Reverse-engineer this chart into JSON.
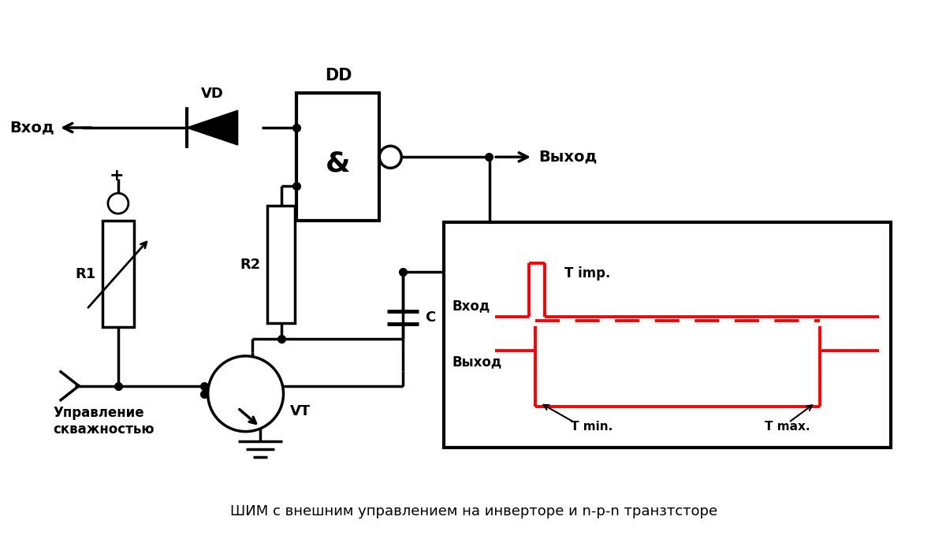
{
  "title": "ШИМ с внешним управлением на инверторе и n-p-n транзтсторе",
  "bg_color": "#ffffff",
  "line_color": "#000000",
  "red_color": "#ff0000",
  "figsize": [
    12.0,
    6.98
  ],
  "dpi": 100,
  "labels": {
    "vhod": "Вход",
    "vyhod": "Выход",
    "vd": "VD",
    "dd": "DD",
    "r1": "R1",
    "r2": "R2",
    "c": "C",
    "vt": "VT",
    "amp": "&",
    "plus": "+",
    "upravlenie": "Управление\nскважностью",
    "vhod_diag": "Вход",
    "vyhod_diag": "Выход",
    "t_imp": "T imp.",
    "t_min": "T min.",
    "t_max": "T max."
  }
}
